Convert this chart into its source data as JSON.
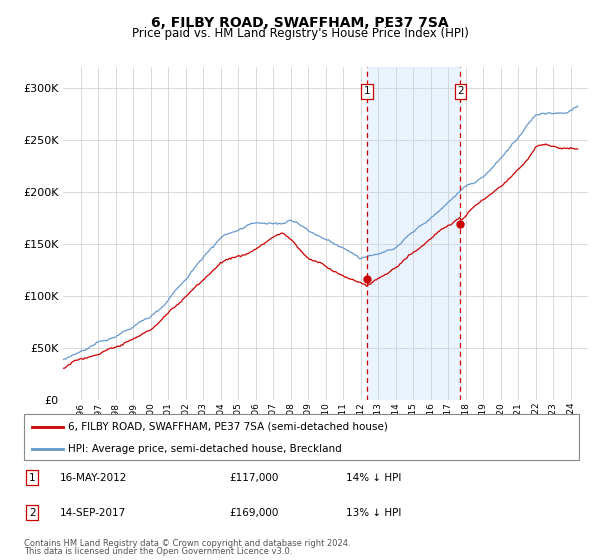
{
  "title": "6, FILBY ROAD, SWAFFHAM, PE37 7SA",
  "subtitle": "Price paid vs. HM Land Registry's House Price Index (HPI)",
  "legend_line1": "6, FILBY ROAD, SWAFFHAM, PE37 7SA (semi-detached house)",
  "legend_line2": "HPI: Average price, semi-detached house, Breckland",
  "footnote1": "Contains HM Land Registry data © Crown copyright and database right 2024.",
  "footnote2": "This data is licensed under the Open Government Licence v3.0.",
  "transaction1_date": "16-MAY-2012",
  "transaction1_price": "£117,000",
  "transaction1_hpi": "14% ↓ HPI",
  "transaction2_date": "14-SEP-2017",
  "transaction2_price": "£169,000",
  "transaction2_hpi": "13% ↓ HPI",
  "transaction1_x": 2012.37,
  "transaction1_y": 117000,
  "transaction2_x": 2017.71,
  "transaction2_y": 169000,
  "hpi_color": "#6699cc",
  "price_color": "#cc0000",
  "transaction_color": "#cc0000",
  "shading_color": "#ddeeff",
  "grid_color": "#cccccc",
  "ylim_min": 0,
  "ylim_max": 320000,
  "yticks": [
    0,
    50000,
    100000,
    150000,
    200000,
    250000,
    300000
  ],
  "xmin": 1995,
  "xmax": 2025
}
